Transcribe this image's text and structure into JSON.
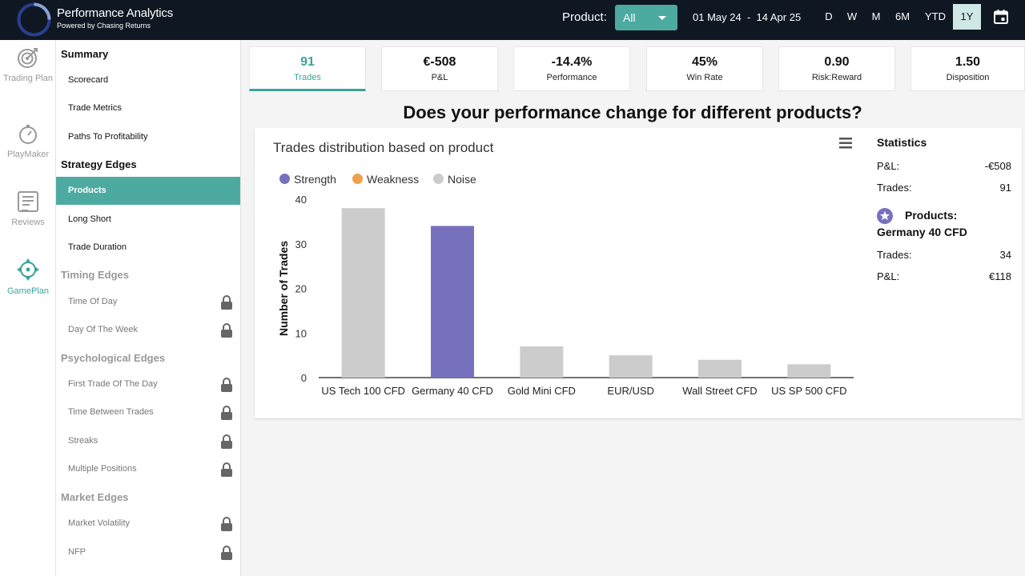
{
  "app": {
    "title": "Performance Analytics",
    "subtitle": "Powered by Chasing Returns"
  },
  "header": {
    "product_label": "Product:",
    "product_value": "All",
    "date_start": "01 May 24",
    "date_sep": "-",
    "date_end": "14 Apr 25",
    "periods": [
      "D",
      "W",
      "M",
      "6M",
      "YTD",
      "1Y"
    ],
    "active_period": "1Y"
  },
  "rail": {
    "items": [
      {
        "label": "Trading Plan",
        "icon": "target-icon"
      },
      {
        "label": "PlayMaker",
        "icon": "gauge-icon"
      },
      {
        "label": "Reviews",
        "icon": "clipboard-icon"
      },
      {
        "label": "GamePlan",
        "icon": "compass-icon",
        "active": true
      }
    ]
  },
  "sidebar": {
    "summary": "Summary",
    "summary_items": [
      "Scorecard",
      "Trade Metrics",
      "Paths To Profitability"
    ],
    "strategy": "Strategy Edges",
    "strategy_items": [
      "Products",
      "Long Short",
      "Trade Duration"
    ],
    "timing": "Timing Edges",
    "timing_items": [
      "Time Of Day",
      "Day Of The Week"
    ],
    "psych": "Psychological Edges",
    "psych_items": [
      "First Trade Of The Day",
      "Time Between Trades",
      "Streaks",
      "Multiple Positions"
    ],
    "market": "Market Edges",
    "market_items": [
      "Market Volatility",
      "NFP"
    ]
  },
  "kpis": [
    {
      "value": "91",
      "label": "Trades"
    },
    {
      "value": "€-508",
      "label": "P&L"
    },
    {
      "value": "-14.4%",
      "label": "Performance"
    },
    {
      "value": "45%",
      "label": "Win Rate"
    },
    {
      "value": "0.90",
      "label": "Risk:Reward"
    },
    {
      "value": "1.50",
      "label": "Disposition"
    }
  ],
  "question": "Does your performance change for different products?",
  "colors": {
    "accent": "#4caaa1",
    "strength": "#7771bd",
    "weakness": "#f0a04b",
    "noise": "#cccccc"
  },
  "chart_data": {
    "type": "bar",
    "title": "Trades distribution based on product",
    "ylabel": "Number of Trades",
    "ylim": [
      0,
      40
    ],
    "yticks": [
      0,
      10,
      20,
      30,
      40
    ],
    "legend": [
      "Strength",
      "Weakness",
      "Noise"
    ],
    "categories": [
      "US Tech 100 CFD",
      "Germany 40 CFD",
      "Gold Mini CFD",
      "EUR/USD",
      "Wall Street CFD",
      "US SP 500 CFD"
    ],
    "values": [
      38,
      34,
      7,
      5,
      4,
      3
    ],
    "classes": [
      "Noise",
      "Strength",
      "Noise",
      "Noise",
      "Noise",
      "Noise"
    ]
  },
  "stats": {
    "title": "Statistics",
    "pnl_label": "P&L:",
    "pnl_value": "-€508",
    "trades_label": "Trades:",
    "trades_value": "91",
    "products_label": "Products:",
    "product_name": "Germany 40 CFD",
    "prod_trades_label": "Trades:",
    "prod_trades_value": "34",
    "prod_pnl_label": "P&L:",
    "prod_pnl_value": "€118"
  }
}
